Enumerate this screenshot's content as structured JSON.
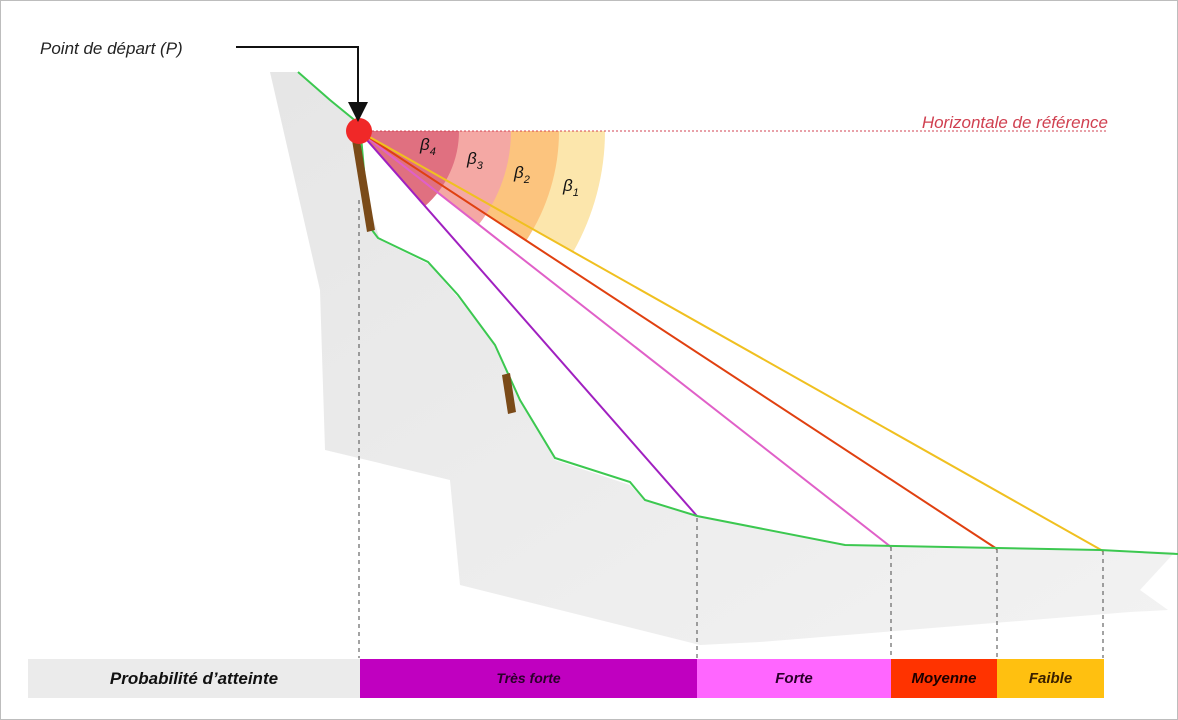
{
  "start_label": "Point de départ (P)",
  "reference_label": "Horizontale de référence",
  "angles": [
    {
      "base": "β",
      "sub": "4",
      "color": "#e07080"
    },
    {
      "base": "β",
      "sub": "3",
      "color": "#f4a8a4"
    },
    {
      "base": "β",
      "sub": "2",
      "color": "#fcc47e"
    },
    {
      "base": "β",
      "sub": "1",
      "color": "#fce6ac"
    }
  ],
  "rays": [
    {
      "name": "ray-very-strong",
      "color": "#a020c0"
    },
    {
      "name": "ray-strong",
      "color": "#e060c8"
    },
    {
      "name": "ray-medium",
      "color": "#e04010"
    },
    {
      "name": "ray-weak",
      "color": "#f0c020"
    }
  ],
  "legend": {
    "title": "Probabilité d’atteinte",
    "segments": [
      {
        "label": "Très forte",
        "color": "#c000c0",
        "text_color": "#2a002a"
      },
      {
        "label": "Forte",
        "color": "#ff66ff",
        "text_color": "#2a002a"
      },
      {
        "label": "Moyenne",
        "color": "#ff3300",
        "text_color": "#1a0000"
      },
      {
        "label": "Faible",
        "color": "#ffc010",
        "text_color": "#3a2000"
      }
    ]
  },
  "colors": {
    "ground_line": "#3cc850",
    "start_point": "#f02828",
    "reference_line": "#d04050",
    "slope_fill": "#e4e4e4"
  }
}
